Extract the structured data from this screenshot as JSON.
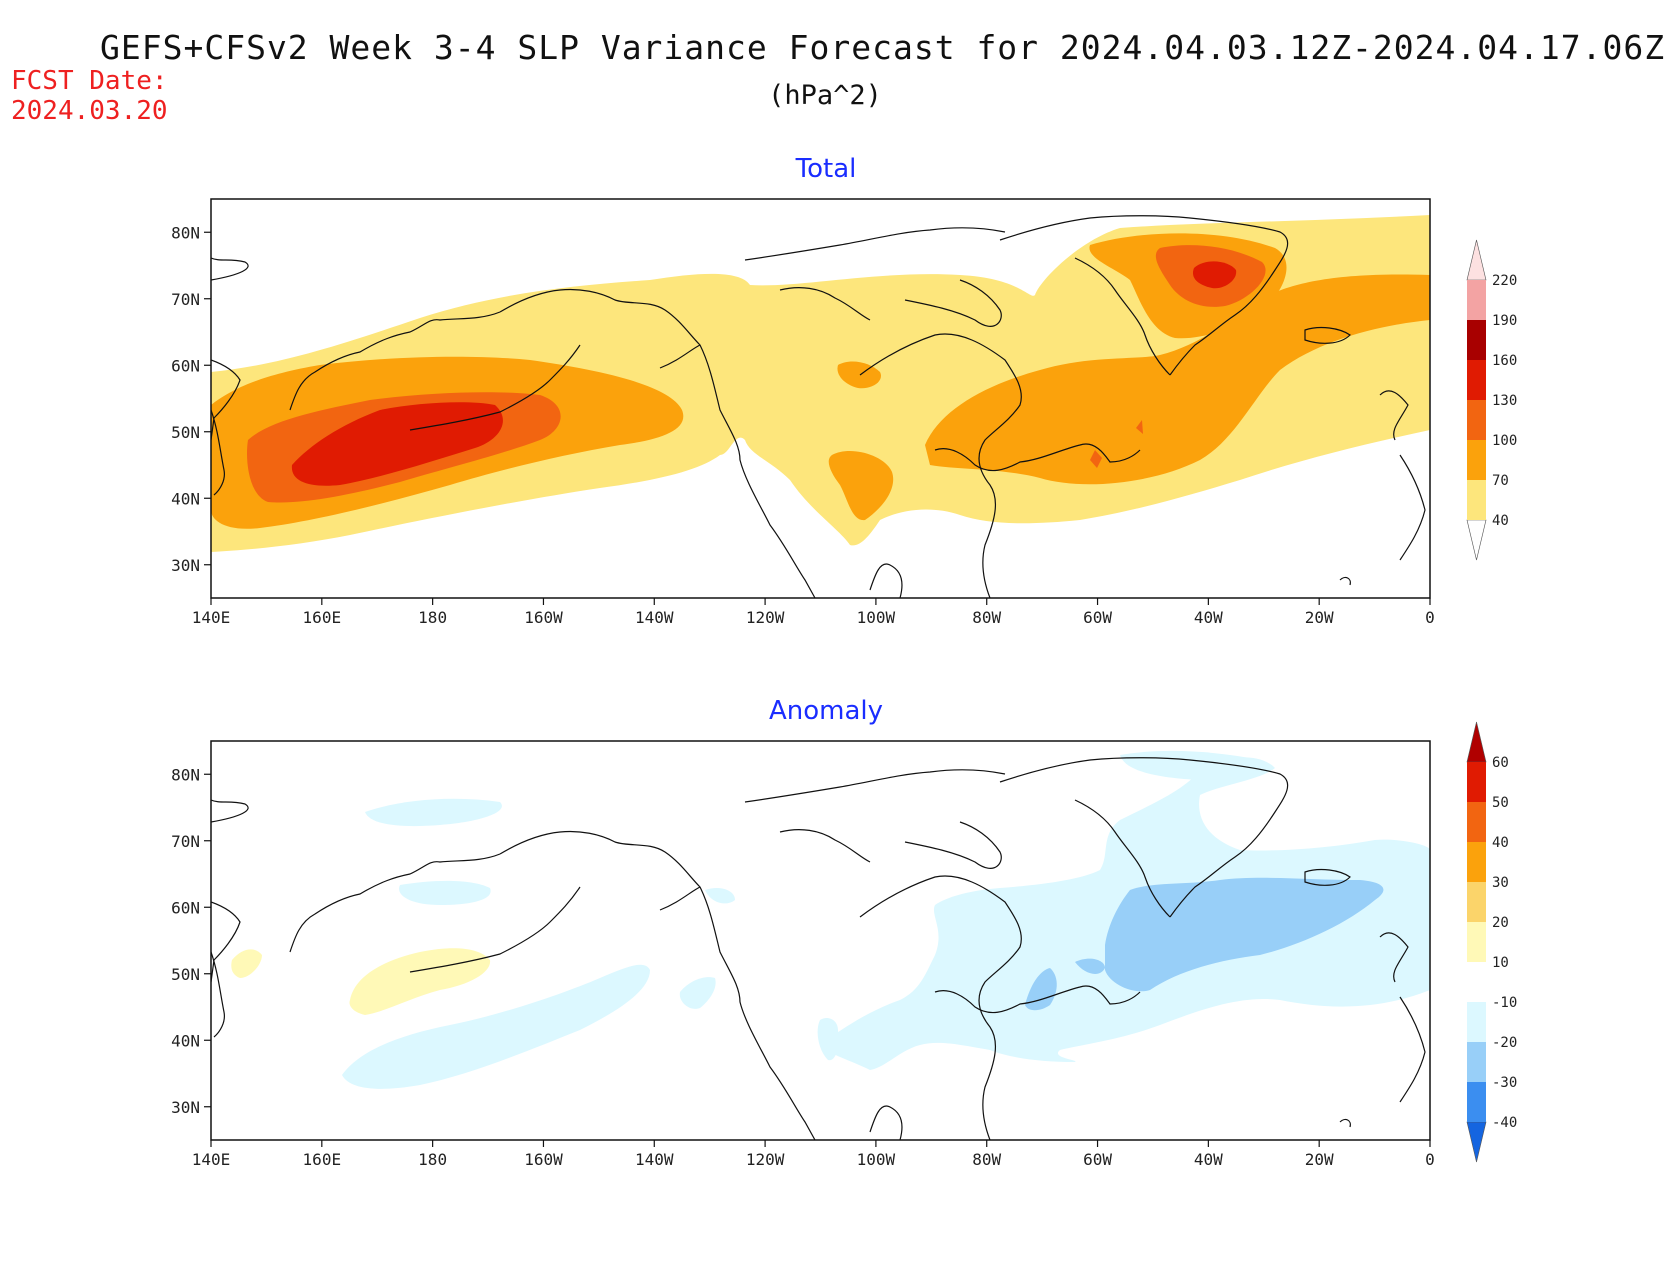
{
  "header": {
    "title": "GEFS+CFSv2 Week 3-4 SLP Variance Forecast for 2024.04.03.12Z-2024.04.17.06Z",
    "units": "(hPa^2)",
    "fcst_label": "FCST Date:",
    "fcst_date": "2024.03.20"
  },
  "map": {
    "lon_ticks": [
      "140E",
      "160E",
      "180",
      "160W",
      "140W",
      "120W",
      "100W",
      "80W",
      "60W",
      "40W",
      "20W",
      "0"
    ],
    "lat_ticks": [
      "80N",
      "70N",
      "60N",
      "50N",
      "40N",
      "30N"
    ]
  },
  "panels": [
    {
      "title": "Total",
      "colorbar": {
        "levels": [
          "40",
          "70",
          "100",
          "130",
          "160",
          "190",
          "220"
        ],
        "colors": [
          "#ffffff",
          "#fde67c",
          "#fba20c",
          "#f26511",
          "#e01b02",
          "#a80000",
          "#f3a3a3",
          "#fde1e1"
        ]
      }
    },
    {
      "title": "Anomaly",
      "colorbar": {
        "levels": [
          "-40",
          "-30",
          "-20",
          "-10",
          "10",
          "20",
          "30",
          "40",
          "50",
          "60"
        ],
        "colors": [
          "#1565e0",
          "#3b8ef0",
          "#98cff8",
          "#dcf8ff",
          "#ffffff",
          "#fff9b7",
          "#fbd46a",
          "#fba20c",
          "#f26511",
          "#e01b02",
          "#b00000"
        ]
      }
    }
  ]
}
